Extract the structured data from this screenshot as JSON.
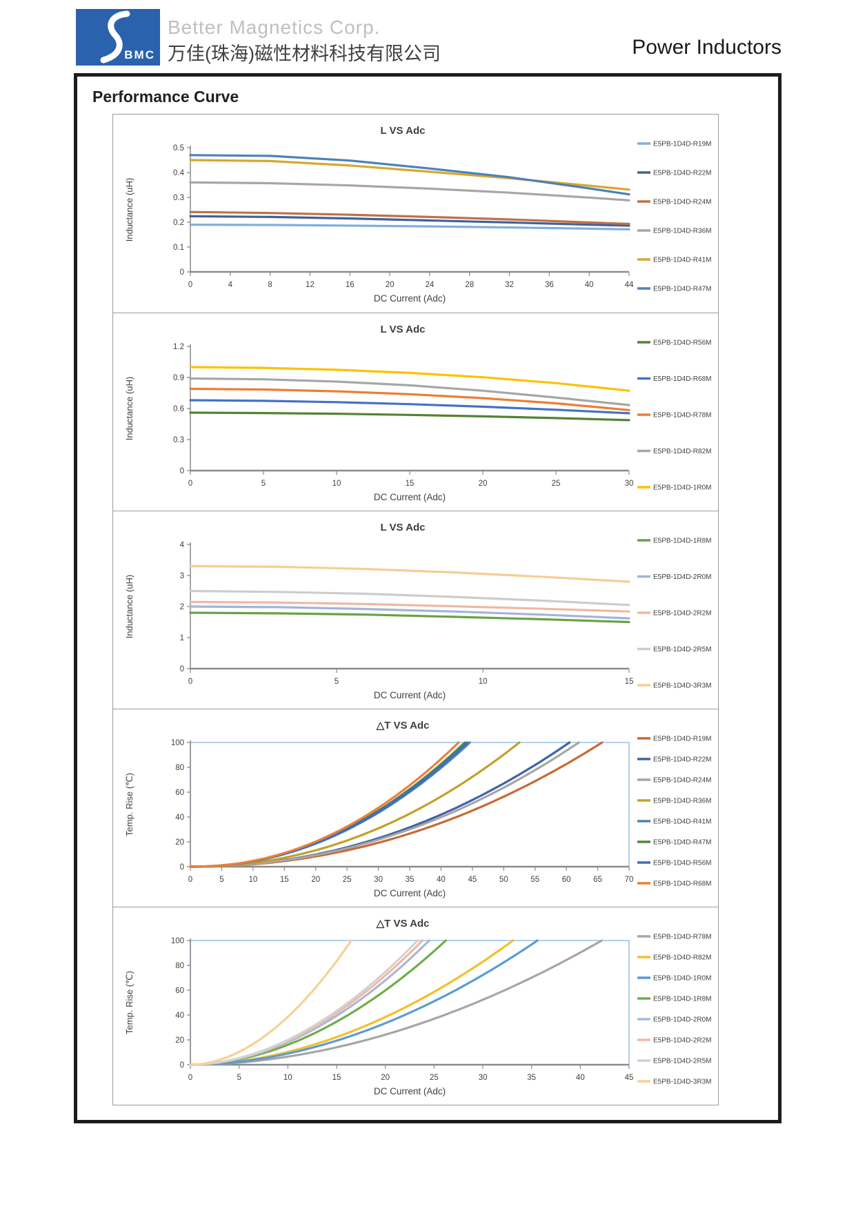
{
  "header": {
    "logo_text": "BMC",
    "logo_color": "#2A62AE",
    "company_en": "Better Magnetics Corp.",
    "company_cn": "万佳(珠海)磁性材料科技有限公司",
    "product": "Power Inductors"
  },
  "page_title": "Performance Curve",
  "chart_data": [
    {
      "type": "line",
      "title": "L VS Adc",
      "xlabel": "DC Current (Adc)",
      "ylabel": "Inductance (uH)",
      "xlim": [
        0,
        44
      ],
      "xstep": 4,
      "ylim": [
        0,
        0.5
      ],
      "ystep": 0.1,
      "ydec": 1,
      "grid": false,
      "legend_position": "right",
      "series": [
        {
          "label": "E5PB-1D4D-R19M",
          "color": "#7FAFDC",
          "x": [
            0,
            8,
            16,
            24,
            32,
            40,
            44
          ],
          "y": [
            0.19,
            0.189,
            0.186,
            0.183,
            0.179,
            0.174,
            0.171
          ]
        },
        {
          "label": "E5PB-1D4D-R22M",
          "color": "#41619B",
          "x": [
            0,
            8,
            16,
            24,
            32,
            40,
            44
          ],
          "y": [
            0.224,
            0.221,
            0.215,
            0.207,
            0.199,
            0.19,
            0.186
          ]
        },
        {
          "label": "E5PB-1D4D-R24M",
          "color": "#BE7146",
          "x": [
            0,
            8,
            16,
            24,
            32,
            40,
            44
          ],
          "y": [
            0.241,
            0.237,
            0.23,
            0.221,
            0.211,
            0.199,
            0.193
          ]
        },
        {
          "label": "E5PB-1D4D-R36M",
          "color": "#A6A6A6",
          "x": [
            0,
            8,
            16,
            24,
            32,
            40,
            44
          ],
          "y": [
            0.36,
            0.357,
            0.348,
            0.335,
            0.319,
            0.299,
            0.288
          ]
        },
        {
          "label": "E5PB-1D4D-R41M",
          "color": "#D9A62E",
          "x": [
            0,
            8,
            16,
            24,
            32,
            40,
            44
          ],
          "y": [
            0.45,
            0.446,
            0.428,
            0.403,
            0.377,
            0.347,
            0.331
          ]
        },
        {
          "label": "E5PB-1D4D-R47M",
          "color": "#4D80BA",
          "x": [
            0,
            8,
            16,
            24,
            32,
            40,
            44
          ],
          "y": [
            0.47,
            0.467,
            0.448,
            0.416,
            0.381,
            0.336,
            0.312
          ]
        }
      ]
    },
    {
      "type": "line",
      "title": "L VS Adc",
      "xlabel": "DC Current (Adc)",
      "ylabel": "Inductance (uH)",
      "xlim": [
        0,
        30
      ],
      "xstep": 5,
      "ylim": [
        0,
        1.2
      ],
      "ystep": 0.3,
      "ydec": 1,
      "grid": false,
      "legend_position": "right",
      "series": [
        {
          "label": "E5PB-1D4D-R56M",
          "color": "#548235",
          "x": [
            0,
            5,
            10,
            15,
            20,
            25,
            30
          ],
          "y": [
            0.56,
            0.556,
            0.549,
            0.538,
            0.524,
            0.507,
            0.487
          ]
        },
        {
          "label": "E5PB-1D4D-R68M",
          "color": "#4472C4",
          "x": [
            0,
            5,
            10,
            15,
            20,
            25,
            30
          ],
          "y": [
            0.68,
            0.674,
            0.661,
            0.642,
            0.617,
            0.588,
            0.554
          ]
        },
        {
          "label": "E5PB-1D4D-R78M",
          "color": "#ED7D31",
          "x": [
            0,
            5,
            10,
            15,
            20,
            25,
            30
          ],
          "y": [
            0.79,
            0.783,
            0.766,
            0.738,
            0.7,
            0.65,
            0.585
          ]
        },
        {
          "label": "E5PB-1D4D-R82M",
          "color": "#A6A6A6",
          "x": [
            0,
            5,
            10,
            15,
            20,
            25,
            30
          ],
          "y": [
            0.89,
            0.882,
            0.86,
            0.824,
            0.772,
            0.706,
            0.633
          ]
        },
        {
          "label": "E5PB-1D4D-1R0M",
          "color": "#FFC000",
          "x": [
            0,
            5,
            10,
            15,
            20,
            25,
            30
          ],
          "y": [
            1.0,
            0.993,
            0.974,
            0.944,
            0.902,
            0.845,
            0.772
          ]
        }
      ]
    },
    {
      "type": "line",
      "title": "L VS Adc",
      "xlabel": "DC Current (Adc)",
      "ylabel": "Inductance (uH)",
      "xlim": [
        0,
        15
      ],
      "xstep": 5,
      "ylim": [
        0,
        4
      ],
      "ystep": 1,
      "ydec": 0,
      "grid": false,
      "legend_position": "right",
      "series": [
        {
          "label": "E5PB-1D4D-1R8M",
          "color": "#69A244",
          "x": [
            0,
            3,
            6,
            9,
            12,
            15
          ],
          "y": [
            1.8,
            1.78,
            1.74,
            1.67,
            1.59,
            1.5
          ]
        },
        {
          "label": "E5PB-1D4D-2R0M",
          "color": "#A3B4D6",
          "x": [
            0,
            3,
            6,
            9,
            12,
            15
          ],
          "y": [
            2.0,
            1.98,
            1.92,
            1.84,
            1.74,
            1.62
          ]
        },
        {
          "label": "E5PB-1D4D-2R2M",
          "color": "#F0B7A2",
          "x": [
            0,
            3,
            6,
            9,
            12,
            15
          ],
          "y": [
            2.15,
            2.13,
            2.08,
            2.01,
            1.93,
            1.84
          ]
        },
        {
          "label": "E5PB-1D4D-2R5M",
          "color": "#CCCCCC",
          "x": [
            0,
            3,
            6,
            9,
            12,
            15
          ],
          "y": [
            2.5,
            2.47,
            2.41,
            2.31,
            2.19,
            2.05
          ]
        },
        {
          "label": "E5PB-1D4D-3R3M",
          "color": "#F6CD94",
          "x": [
            0,
            3,
            6,
            9,
            12,
            15
          ],
          "y": [
            3.3,
            3.28,
            3.21,
            3.1,
            2.96,
            2.8
          ]
        }
      ]
    },
    {
      "type": "line",
      "title": "△T VS Adc",
      "xlabel": "DC Current (Adc)",
      "ylabel": "Temp. Rise (℃)",
      "xlim": [
        0,
        70
      ],
      "xstep": 5,
      "ylim": [
        0,
        100
      ],
      "ystep": 20,
      "ydec": 0,
      "grid": false,
      "legend_position": "right",
      "plot_border": "#9DC3E6",
      "curve_exp": 2.1,
      "series": [
        {
          "label": "E5PB-1D4D-R19M",
          "color": "#C76A33",
          "x100": 65.7
        },
        {
          "label": "E5PB-1D4D-R22M",
          "color": "#3F63A5",
          "x100": 60.5
        },
        {
          "label": "E5PB-1D4D-R24M",
          "color": "#A6A6A6",
          "x100": 62.0
        },
        {
          "label": "E5PB-1D4D-R36M",
          "color": "#C3A02A",
          "x100": 52.5
        },
        {
          "label": "E5PB-1D4D-R41M",
          "color": "#4E82B8",
          "x100": 44.6
        },
        {
          "label": "E5PB-1D4D-R47M",
          "color": "#56863A",
          "x100": 43.8
        },
        {
          "label": "E5PB-1D4D-R56M",
          "color": "#3E6DBF",
          "x100": 44.2
        },
        {
          "label": "E5PB-1D4D-R68M",
          "color": "#EC8038",
          "x100": 42.8
        }
      ]
    },
    {
      "type": "line",
      "title": "△T VS Adc",
      "xlabel": "DC Current (Adc)",
      "ylabel": "Temp. Rise (℃)",
      "xlim": [
        0,
        45
      ],
      "xstep": 5,
      "ylim": [
        0,
        100
      ],
      "ystep": 20,
      "ydec": 0,
      "grid": false,
      "legend_position": "right",
      "plot_border": "#9DC3E6",
      "curve_exp": 1.9,
      "series": [
        {
          "label": "E5PB-1D4D-R78M",
          "color": "#A6A6A6",
          "x100": 42.2
        },
        {
          "label": "E5PB-1D4D-R82M",
          "color": "#F5BE2A",
          "x100": 33.1
        },
        {
          "label": "E5PB-1D4D-1R0M",
          "color": "#5B9BD5",
          "x100": 35.6
        },
        {
          "label": "E5PB-1D4D-1R8M",
          "color": "#70AD47",
          "x100": 26.2
        },
        {
          "label": "E5PB-1D4D-2R0M",
          "color": "#A8B8DA",
          "x100": 24.5
        },
        {
          "label": "E5PB-1D4D-2R2M",
          "color": "#F2B8A4",
          "x100": 23.8
        },
        {
          "label": "E5PB-1D4D-2R5M",
          "color": "#D2D2D2",
          "x100": 23.3
        },
        {
          "label": "E5PB-1D4D-3R3M",
          "color": "#F8D096",
          "x100": 16.5
        }
      ]
    }
  ]
}
